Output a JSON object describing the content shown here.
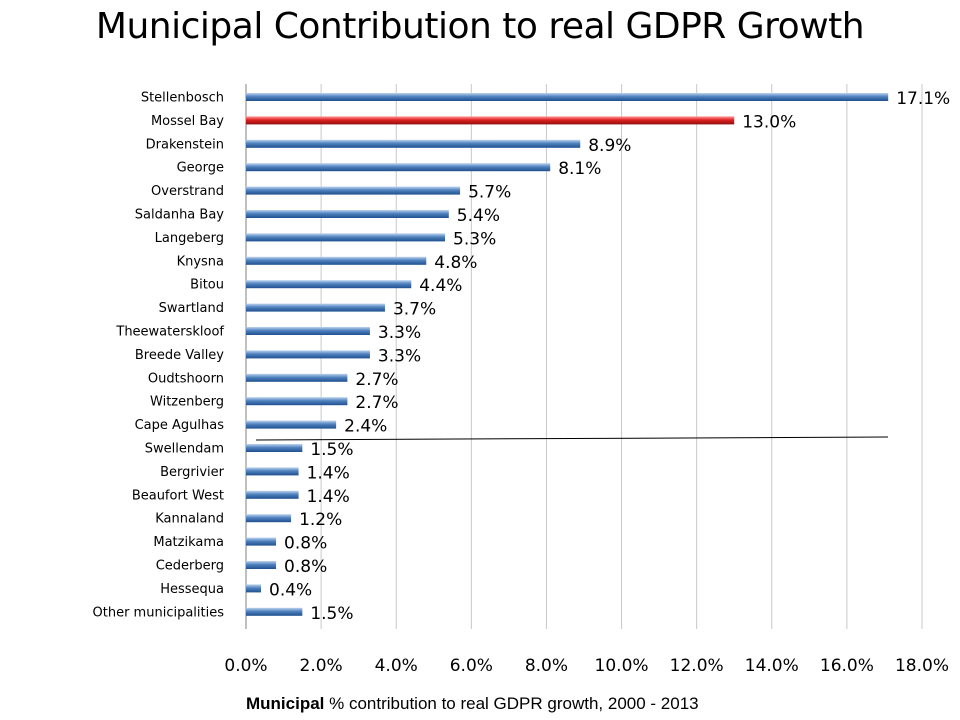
{
  "chart_data": {
    "type": "bar",
    "orientation": "horizontal",
    "title": "Municipal Contribution to real GDPR Growth",
    "caption_bold": "Municipal",
    "caption_rest": " % contribution to real GDPR growth, 2000 - 2013",
    "categories": [
      "Stellenbosch",
      "Mossel Bay",
      "Drakenstein",
      "George",
      "Overstrand",
      "Saldanha Bay",
      "Langeberg",
      "Knysna",
      "Bitou",
      "Swartland",
      "Theewaterskloof",
      "Breede Valley",
      "Oudtshoorn",
      "Witzenberg",
      "Cape Agulhas",
      "Swellendam",
      "Bergrivier",
      "Beaufort West",
      "Kannaland",
      "Matzikama",
      "Cederberg",
      "Hessequa",
      "Other municipalities"
    ],
    "values": [
      17.1,
      13.0,
      8.9,
      8.1,
      5.7,
      5.4,
      5.3,
      4.8,
      4.4,
      3.7,
      3.3,
      3.3,
      2.7,
      2.7,
      2.4,
      1.5,
      1.4,
      1.4,
      1.2,
      0.8,
      0.8,
      0.4,
      1.5
    ],
    "value_labels": [
      "17.1%",
      "13.0%",
      "8.9%",
      "8.1%",
      "5.7%",
      "5.4%",
      "5.3%",
      "4.8%",
      "4.4%",
      "3.7%",
      "3.3%",
      "3.3%",
      "2.7%",
      "2.7%",
      "2.4%",
      "1.5%",
      "1.4%",
      "1.4%",
      "1.2%",
      "0.8%",
      "0.8%",
      "0.4%",
      "1.5%"
    ],
    "highlight_index": 1,
    "xlim": [
      0,
      18
    ],
    "xticks": [
      "0.0%",
      "2.0%",
      "4.0%",
      "6.0%",
      "8.0%",
      "10.0%",
      "12.0%",
      "14.0%",
      "16.0%",
      "18.0%"
    ],
    "grid": true,
    "colors": {
      "bar": "#4f81bd",
      "highlight": "#e02020"
    }
  }
}
